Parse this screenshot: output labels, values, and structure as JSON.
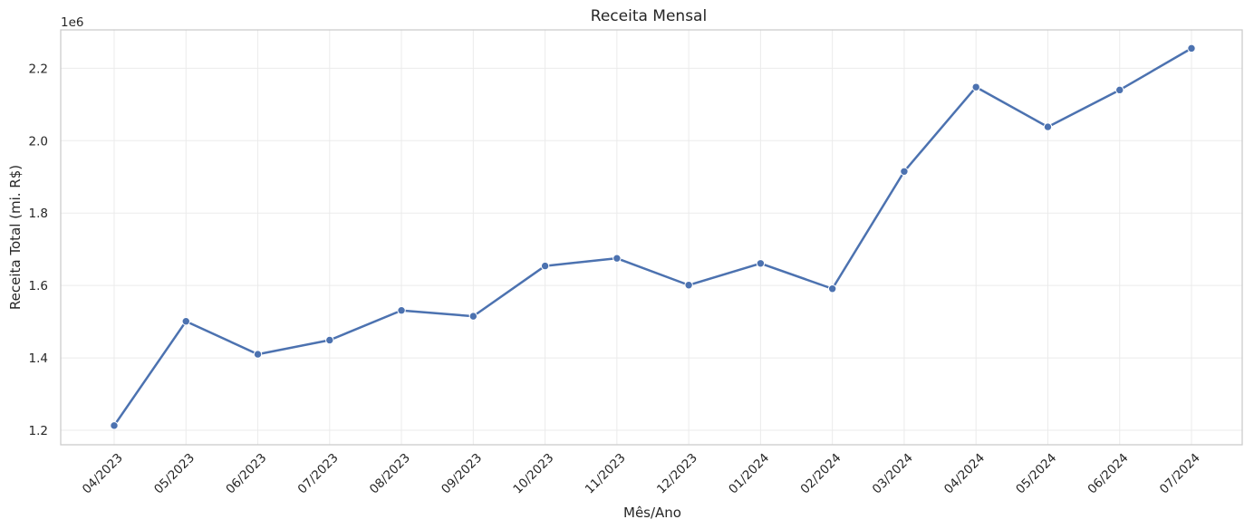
{
  "chart_data": {
    "type": "line",
    "title": "Receita Mensal",
    "xlabel": "Mês/Ano",
    "ylabel": "Receita Total (mi. R$)",
    "y_offset_label": "1e6",
    "categories": [
      "04/2023",
      "05/2023",
      "06/2023",
      "07/2023",
      "08/2023",
      "09/2023",
      "10/2023",
      "11/2023",
      "12/2023",
      "01/2024",
      "02/2024",
      "03/2024",
      "04/2024",
      "05/2024",
      "06/2024",
      "07/2024"
    ],
    "values": [
      1213000,
      1501000,
      1410000,
      1449000,
      1531000,
      1515000,
      1654000,
      1675000,
      1601000,
      1661000,
      1591000,
      1915000,
      2148000,
      2038000,
      2140000,
      2255000
    ],
    "ylim": [
      1160000,
      2306000
    ],
    "yticks": [
      1200000,
      1400000,
      1600000,
      1800000,
      2000000,
      2200000
    ],
    "ytick_labels": [
      "1.2",
      "1.4",
      "1.6",
      "1.8",
      "2.0",
      "2.2"
    ],
    "grid": true,
    "line_color": "#4c72b0",
    "grid_color": "#ebebeb",
    "frame_color": "#cccccc"
  }
}
